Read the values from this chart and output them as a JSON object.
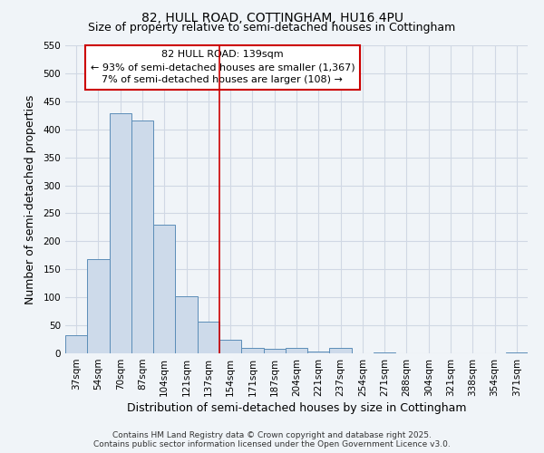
{
  "title": "82, HULL ROAD, COTTINGHAM, HU16 4PU",
  "subtitle": "Size of property relative to semi-detached houses in Cottingham",
  "xlabel": "Distribution of semi-detached houses by size in Cottingham",
  "ylabel": "Number of semi-detached properties",
  "categories": [
    "37sqm",
    "54sqm",
    "70sqm",
    "87sqm",
    "104sqm",
    "121sqm",
    "137sqm",
    "154sqm",
    "171sqm",
    "187sqm",
    "204sqm",
    "221sqm",
    "237sqm",
    "254sqm",
    "271sqm",
    "288sqm",
    "304sqm",
    "321sqm",
    "338sqm",
    "354sqm",
    "371sqm"
  ],
  "values": [
    32,
    168,
    428,
    415,
    230,
    102,
    57,
    25,
    10,
    8,
    9,
    3,
    10,
    0,
    1,
    0,
    0,
    0,
    0,
    0,
    1
  ],
  "bar_color": "#cddaea",
  "bar_edge_color": "#5b8db8",
  "vline_color": "#cc0000",
  "vline_x_index": 6,
  "annotation_text_line1": "82 HULL ROAD: 139sqm",
  "annotation_text_line2": "← 93% of semi-detached houses are smaller (1,367)",
  "annotation_text_line3": "7% of semi-detached houses are larger (108) →",
  "box_facecolor": "#ffffff",
  "box_edgecolor": "#cc0000",
  "ylim": [
    0,
    550
  ],
  "yticks": [
    0,
    50,
    100,
    150,
    200,
    250,
    300,
    350,
    400,
    450,
    500,
    550
  ],
  "background_color": "#f0f4f8",
  "grid_color": "#d0d8e4",
  "title_fontsize": 10,
  "subtitle_fontsize": 9,
  "axis_label_fontsize": 9,
  "tick_fontsize": 7.5,
  "annotation_fontsize": 8,
  "footer_fontsize": 6.5,
  "footer_line1": "Contains HM Land Registry data © Crown copyright and database right 2025.",
  "footer_line2": "Contains public sector information licensed under the Open Government Licence v3.0."
}
